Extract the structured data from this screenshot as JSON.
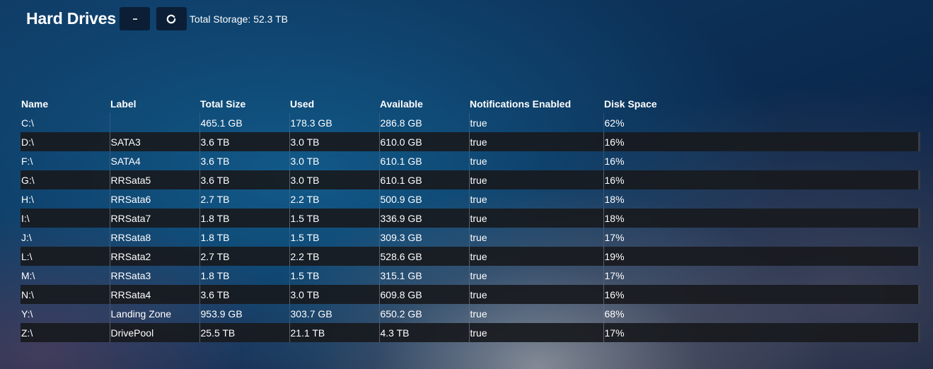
{
  "header": {
    "title": "Hard Drives",
    "more_label": "···",
    "refresh_icon": "refresh-icon",
    "total_storage": "Total Storage: 52.3 TB"
  },
  "table": {
    "columns": [
      "Name",
      "Label",
      "Total Size",
      "Used",
      "Available",
      "Notifications Enabled",
      "Disk Space"
    ],
    "rows": [
      [
        "C:\\",
        "",
        "465.1 GB",
        "178.3 GB",
        "286.8 GB",
        "true",
        "62%"
      ],
      [
        "D:\\",
        "SATA3",
        "3.6 TB",
        "3.0 TB",
        "610.0 GB",
        "true",
        "16%"
      ],
      [
        "F:\\",
        "SATA4",
        "3.6 TB",
        "3.0 TB",
        "610.1 GB",
        "true",
        "16%"
      ],
      [
        "G:\\",
        "RRSata5",
        "3.6 TB",
        "3.0 TB",
        "610.1 GB",
        "true",
        "16%"
      ],
      [
        "H:\\",
        "RRSata6",
        "2.7 TB",
        "2.2 TB",
        "500.9 GB",
        "true",
        "18%"
      ],
      [
        "I:\\",
        "RRSata7",
        "1.8 TB",
        "1.5 TB",
        "336.9 GB",
        "true",
        "18%"
      ],
      [
        "J:\\",
        "RRSata8",
        "1.8 TB",
        "1.5 TB",
        "309.3 GB",
        "true",
        "17%"
      ],
      [
        "L:\\",
        "RRSata2",
        "2.7 TB",
        "2.2 TB",
        "528.6 GB",
        "true",
        "19%"
      ],
      [
        "M:\\",
        "RRSata3",
        "1.8 TB",
        "1.5 TB",
        "315.1 GB",
        "true",
        "17%"
      ],
      [
        "N:\\",
        "RRSata4",
        "3.6 TB",
        "3.0 TB",
        "609.8 GB",
        "true",
        "16%"
      ],
      [
        "Y:\\",
        "Landing Zone",
        "953.9 GB",
        "303.7 GB",
        "650.2 GB",
        "true",
        "68%"
      ],
      [
        "Z:\\",
        "DrivePool",
        "25.5 TB",
        "21.1 TB",
        "4.3 TB",
        "true",
        "17%"
      ]
    ]
  },
  "colors": {
    "button_bg": "#0b1e36",
    "stripe_dark": "#181a1e",
    "text": "#ffffff"
  }
}
